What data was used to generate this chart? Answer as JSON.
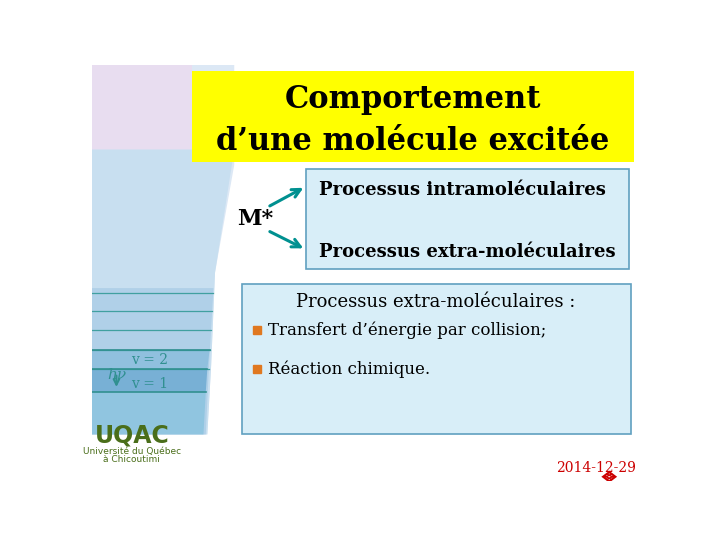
{
  "title_line1": "Comportement",
  "title_line2": "d’une molécule excitée",
  "title_bg": "#ffff00",
  "title_fontsize": 22,
  "slide_bg": "#ffffff",
  "mstar_label": "M*",
  "arrow_color": "#009090",
  "box1_bg": "#d8eef8",
  "box1_border": "#60a0c0",
  "process_intra": "Processus intramoléculaires",
  "process_extra": "Processus extra-moléculaires",
  "box2_bg": "#d8eef8",
  "box2_border": "#60a0c0",
  "subtitle": "Processus extra-moléculaires :",
  "bullet1": "Transfert d’énergie par collision;",
  "bullet2": "Réaction chimique.",
  "bullet_color": "#e07820",
  "text_color": "#000000",
  "teal_text_color": "#309090",
  "v2_label": "v = 2",
  "hv_label": "hν",
  "v1_label": "v = 1",
  "uqac_color": "#4a6e1a",
  "date_color": "#cc0000",
  "date_text": "2014-12-29"
}
